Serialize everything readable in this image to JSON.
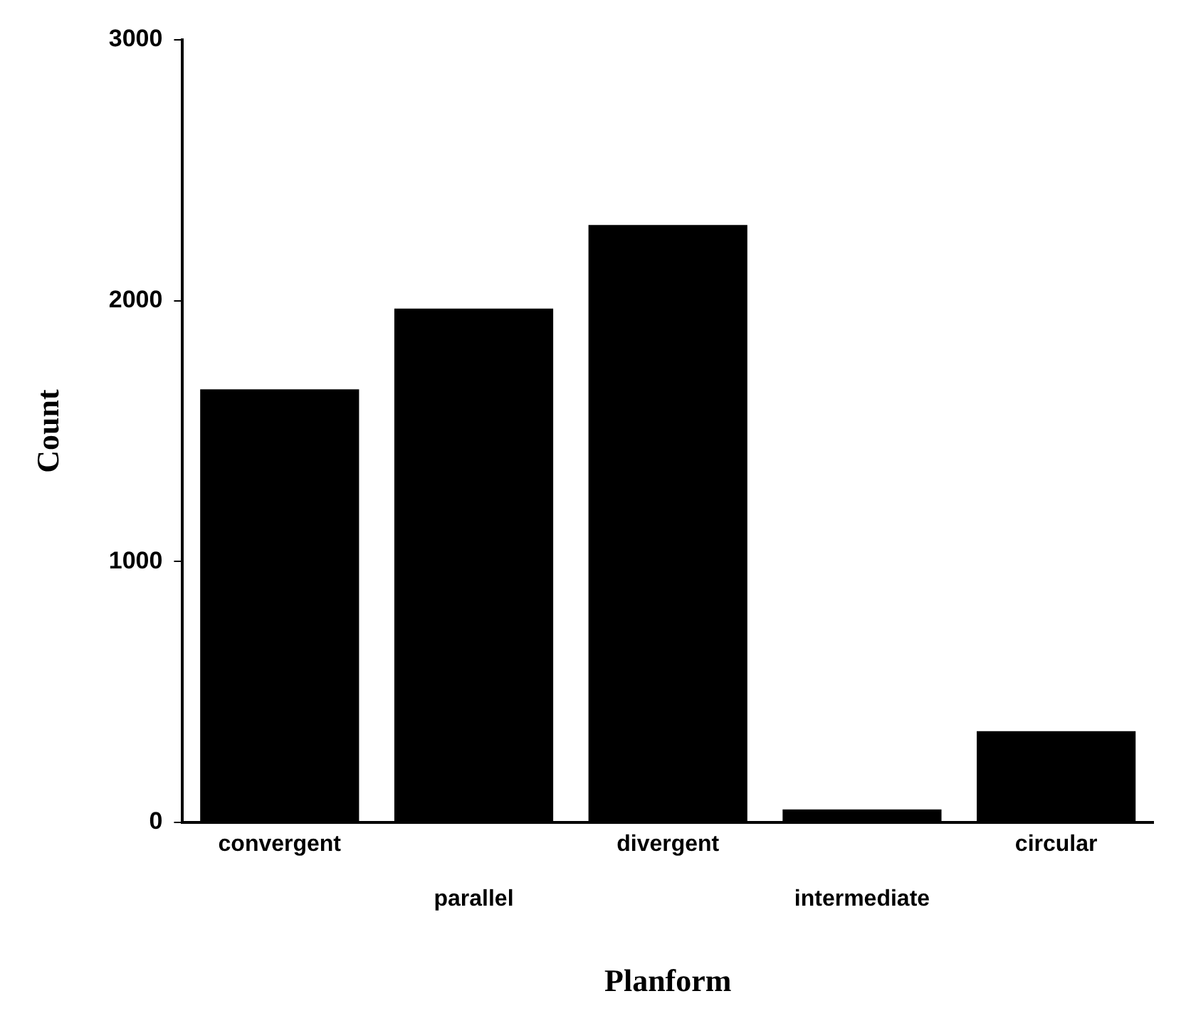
{
  "chart_data": {
    "type": "bar",
    "xlabel": "Planform",
    "ylabel": "Count",
    "categories": [
      "convergent",
      "parallel",
      "divergent",
      "intermediate",
      "circular"
    ],
    "values": [
      1660,
      1970,
      2290,
      50,
      350
    ],
    "color": "#000000",
    "ylim": [
      0,
      3000
    ],
    "yticks": [
      0,
      1000,
      2000,
      3000
    ],
    "grid": false,
    "legend": false
  }
}
